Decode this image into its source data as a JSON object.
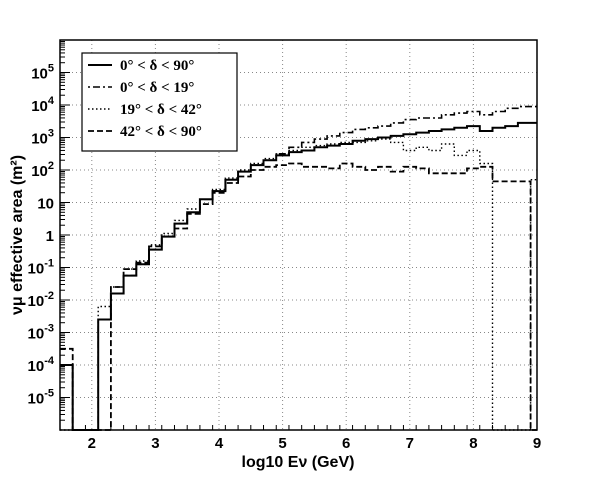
{
  "chart_data": {
    "type": "line",
    "xlabel": "log10 Eν (GeV)",
    "ylabel": "νμ effective area (m²)",
    "xlim": [
      1.5,
      9
    ],
    "ylim_log10": [
      -6,
      6
    ],
    "y_scale": "log",
    "grid": "dotted",
    "legend_position": "top-left",
    "x_ticks": [
      2,
      3,
      4,
      5,
      6,
      7,
      8,
      9
    ],
    "y_ticks": [
      {
        "log10": -5,
        "label_base": "10",
        "label_exp": "-5"
      },
      {
        "log10": -4,
        "label_base": "10",
        "label_exp": "-4"
      },
      {
        "log10": -3,
        "label_base": "10",
        "label_exp": "-3"
      },
      {
        "log10": -2,
        "label_base": "10",
        "label_exp": "-2"
      },
      {
        "log10": -1,
        "label_base": "10",
        "label_exp": "-1"
      },
      {
        "log10": 0,
        "label_base": "1",
        "label_exp": ""
      },
      {
        "log10": 1,
        "label_base": "10",
        "label_exp": ""
      },
      {
        "log10": 2,
        "label_base": "10",
        "label_exp": "2"
      },
      {
        "log10": 3,
        "label_base": "10",
        "label_exp": "3"
      },
      {
        "log10": 4,
        "label_base": "10",
        "label_exp": "4"
      },
      {
        "log10": 5,
        "label_base": "10",
        "label_exp": "5"
      }
    ],
    "bin_width": 0.2,
    "series": [
      {
        "name": "0° < δ < 90°",
        "dash": "solid",
        "x_start": 1.5,
        "log10_values": [
          -4,
          -6,
          -6,
          -2.6,
          -1.8,
          -1.25,
          -0.9,
          -0.45,
          -0.05,
          0.35,
          0.7,
          1.1,
          1.35,
          1.7,
          1.95,
          2.15,
          2.3,
          2.45,
          2.55,
          2.6,
          2.7,
          2.75,
          2.8,
          2.9,
          2.95,
          3.0,
          3.05,
          3.1,
          3.15,
          3.2,
          3.25,
          3.3,
          3.35,
          3.2,
          3.3,
          3.35,
          3.45,
          3.45,
          3.25
        ]
      },
      {
        "name": "0° < δ < 19°",
        "dash": "dashdot",
        "x_start": 1.5,
        "log10_values": [
          -4,
          -6,
          -6,
          -2.6,
          -1.8,
          -1.25,
          -0.9,
          -0.45,
          -0.05,
          0.35,
          0.7,
          1.1,
          1.35,
          1.7,
          1.95,
          2.15,
          2.3,
          2.5,
          2.7,
          2.85,
          2.95,
          3.05,
          3.15,
          3.25,
          3.3,
          3.35,
          3.45,
          3.55,
          3.6,
          3.6,
          3.7,
          3.75,
          3.8,
          3.7,
          3.8,
          3.9,
          3.95,
          3.95,
          3.75
        ]
      },
      {
        "name": "19° < δ < 42°",
        "dash": "dotted",
        "x_start": 1.5,
        "log10_values": [
          -6,
          -6,
          -6,
          -2.2,
          -1.6,
          -1.05,
          -0.8,
          -0.3,
          0.05,
          0.45,
          0.8,
          1.1,
          1.4,
          1.75,
          2.0,
          2.2,
          2.35,
          2.5,
          2.6,
          2.7,
          2.75,
          2.8,
          2.85,
          2.85,
          2.9,
          2.95,
          2.85,
          2.6,
          2.7,
          2.6,
          2.8,
          2.45,
          2.6,
          2.2,
          -6,
          -6,
          -6,
          1.7,
          1.65,
          1.6,
          -6
        ]
      },
      {
        "name": "42° < δ < 90°",
        "dash": "dashed",
        "x_start": 1.5,
        "log10_values": [
          -3.5,
          -6,
          -6,
          -6,
          -1.6,
          -1.05,
          -0.85,
          -0.35,
          -0.05,
          0.2,
          0.65,
          0.95,
          1.3,
          1.6,
          1.8,
          2.0,
          2.1,
          2.15,
          2.2,
          2.1,
          2.1,
          2.05,
          2.2,
          2.1,
          2.0,
          2.1,
          1.95,
          2.1,
          2.05,
          1.9,
          1.9,
          1.9,
          2.05,
          2.1,
          1.65,
          1.65,
          1.65,
          -6,
          1.65,
          1.6,
          -6
        ]
      }
    ]
  }
}
